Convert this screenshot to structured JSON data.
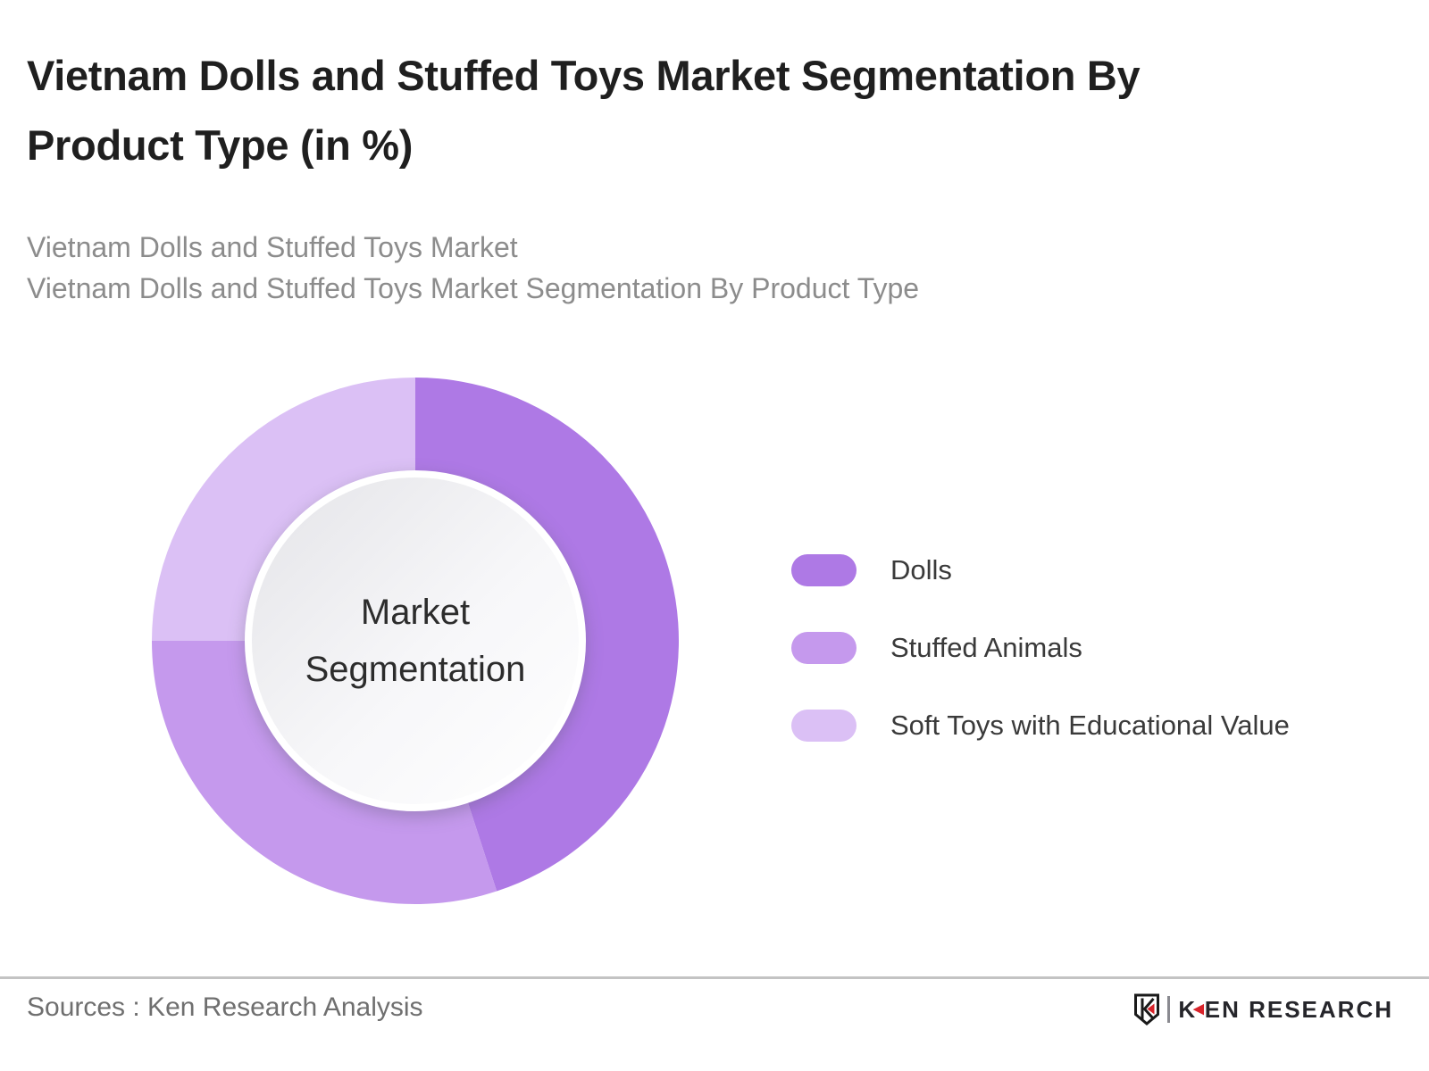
{
  "header": {
    "title": "Vietnam Dolls and Stuffed Toys Market Segmentation By Product Type (in %)",
    "title_lines": [
      "Vietnam Dolls and Stuffed Toys Market Segmentation By",
      "Product Type (in %)"
    ],
    "subtitle_lines": [
      "Vietnam Dolls and Stuffed Toys Market",
      "Vietnam Dolls and Stuffed Toys Market Segmentation By Product Type"
    ]
  },
  "chart_data": {
    "type": "pie",
    "variant": "donut",
    "title": "Vietnam Dolls and Stuffed Toys Market Segmentation By Product Type (in %)",
    "center_label": "Market Segmentation",
    "categories": [
      "Dolls",
      "Stuffed Animals",
      "Soft Toys with Educational Value"
    ],
    "values": [
      45,
      30,
      25
    ],
    "unit": "%",
    "colors": [
      "#ae79e5",
      "#c599ed",
      "#dbc0f5"
    ],
    "start_angle_deg": 0,
    "direction": "clockwise",
    "legend_position": "right",
    "data_labels_shown": false
  },
  "footer": {
    "sources": "Sources : Ken Research Analysis",
    "logo_k": "K",
    "logo_rest": "EN RESEARCH",
    "logo_full_text": "KEN RESEARCH",
    "logo_accent_color": "#d8232a"
  }
}
